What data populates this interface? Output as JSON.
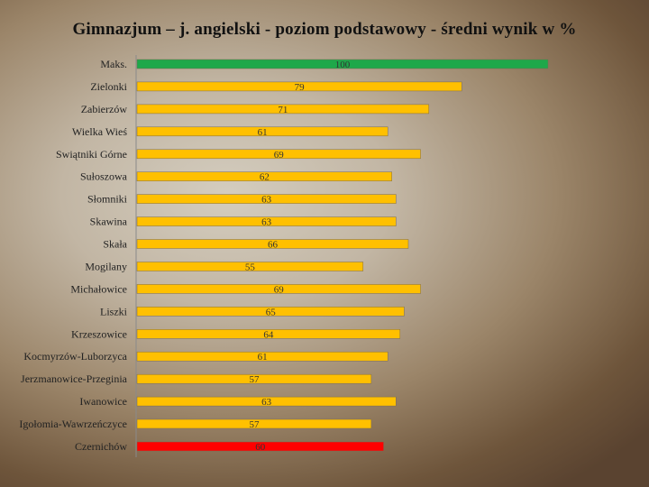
{
  "chart_data": {
    "type": "bar",
    "orientation": "horizontal",
    "title": "Gimnazjum – j. angielski - poziom podstawowy - średni wynik w %",
    "xlabel": "",
    "ylabel": "",
    "xlim": [
      0,
      100
    ],
    "grid": false,
    "legend": "none",
    "default_color": "#ffc000",
    "categories": [
      "Maks.",
      "Zielonki",
      "Zabierzów",
      "Wielka Wieś",
      "Swiątniki Górne",
      "Sułoszowa",
      "Słomniki",
      "Skawina",
      "Skała",
      "Mogilany",
      "Michałowice",
      "Liszki",
      "Krzeszowice",
      "Kocmyrzów-Luborzyca",
      "Jerzmanowice-Przeginia",
      "Iwanowice",
      "Igołomia-Wawrzeńczyce",
      "Czernichów"
    ],
    "values": [
      100,
      79,
      71,
      61,
      69,
      62,
      63,
      63,
      66,
      55,
      69,
      65,
      64,
      61,
      57,
      63,
      57,
      60
    ],
    "colors": [
      "#1ea84a",
      "#ffc000",
      "#ffc000",
      "#ffc000",
      "#ffc000",
      "#ffc000",
      "#ffc000",
      "#ffc000",
      "#ffc000",
      "#ffc000",
      "#ffc000",
      "#ffc000",
      "#ffc000",
      "#ffc000",
      "#ffc000",
      "#ffc000",
      "#ffc000",
      "#ff0000"
    ]
  }
}
